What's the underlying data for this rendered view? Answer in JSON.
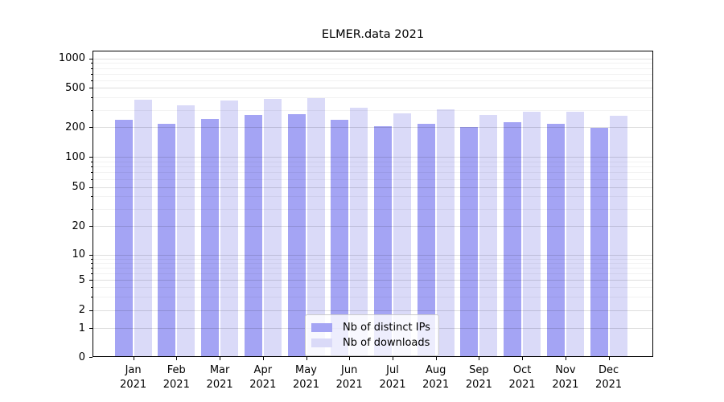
{
  "title": "ELMER.data 2021",
  "chart_data": {
    "type": "bar",
    "title": "ELMER.data 2021",
    "categories": [
      "Jan",
      "Feb",
      "Mar",
      "Apr",
      "May",
      "Jun",
      "Jul",
      "Aug",
      "Sep",
      "Oct",
      "Nov",
      "Dec"
    ],
    "category_year": "2021",
    "series": [
      {
        "name": "Nb of distinct IPs",
        "color": "#a4a4f4",
        "values": [
          236,
          216,
          244,
          266,
          270,
          237,
          206,
          216,
          202,
          227,
          218,
          199
        ]
      },
      {
        "name": "Nb of downloads",
        "color": "#dadaf8",
        "values": [
          377,
          333,
          372,
          390,
          394,
          316,
          277,
          306,
          265,
          289,
          288,
          260
        ]
      }
    ],
    "yticks": [
      0,
      1,
      2,
      5,
      10,
      20,
      50,
      100,
      200,
      500,
      1000
    ],
    "yminor": [
      3,
      4,
      6,
      7,
      8,
      9,
      30,
      40,
      60,
      70,
      80,
      90,
      300,
      400,
      600,
      700,
      800,
      900
    ],
    "ylim": [
      0,
      1200
    ],
    "yscale": "symlog",
    "xlabel": "",
    "ylabel": "",
    "grid": "horizontal major+minor, drawn above bars",
    "legend_position": "lower center inside"
  }
}
